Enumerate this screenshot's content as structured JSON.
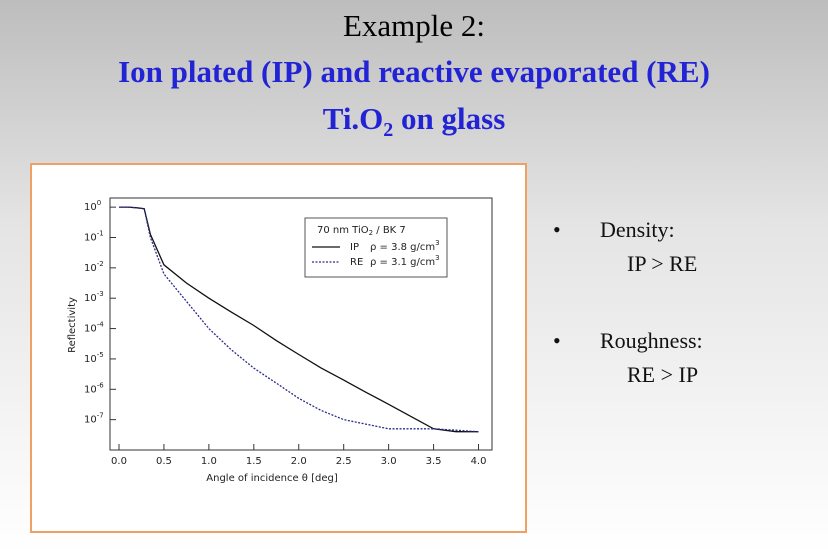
{
  "slide": {
    "title": "Example 2:",
    "subtitle": "Ion plated (IP) and reactive evaporated (RE)",
    "subtitle2": {
      "text": "Ti.O",
      "sub": "2",
      "rest": " on glass"
    }
  },
  "chart_data": {
    "type": "line",
    "log_y": true,
    "grid": false,
    "x_label": "Angle of incidence  θ [deg]",
    "y_label": "Reflectivity",
    "legend": {
      "title": "70 nm TiO",
      "title_sub": "2",
      "title_rest": " / BK 7",
      "entries": [
        {
          "density": "ρ = 3.8 g/cm",
          "unit_exp": "3"
        },
        {
          "density": "ρ = 3.1 g/cm",
          "unit_exp": "3"
        }
      ]
    },
    "x": [
      0,
      0.1,
      0.2,
      0.28,
      0.35,
      0.5,
      0.75,
      1,
      1.25,
      1.5,
      1.75,
      2,
      2.25,
      2.5,
      2.75,
      3,
      3.25,
      3.5,
      3.75,
      4
    ],
    "series": [
      {
        "name": "IP",
        "color": "#111111",
        "dash": false,
        "values": [
          1,
          1,
          0.95,
          0.89,
          0.126,
          0.0126,
          0.00316,
          0.001,
          0.00035,
          0.000126,
          4e-05,
          1.4e-05,
          5e-06,
          2e-06,
          7.9e-07,
          3.2e-07,
          1.26e-07,
          5e-08,
          4e-08,
          4e-08
        ]
      },
      {
        "name": "RE",
        "color": "#2b2b8c",
        "dash": true,
        "values": [
          1,
          1,
          0.95,
          0.89,
          0.1,
          0.0063,
          0.00079,
          0.0001,
          2e-05,
          5e-06,
          1.6e-06,
          5e-07,
          2e-07,
          1e-07,
          7.1e-08,
          5e-08,
          5e-08,
          5e-08,
          4.5e-08,
          4e-08
        ]
      }
    ],
    "xlim": [
      -0.1,
      4.15
    ],
    "xticks": [
      {
        "value": 0,
        "label": "0.0"
      },
      0.5,
      {
        "value": 1,
        "label": "1.0"
      },
      1.5,
      {
        "value": 2,
        "label": "2.0"
      },
      2.5,
      {
        "value": 3,
        "label": "3.0"
      },
      3.5,
      {
        "value": 4,
        "label": "4.0"
      }
    ],
    "ylim": [
      1e-08,
      2
    ],
    "yticks": [
      {
        "value": 1,
        "label": "10",
        "exponent": "0"
      },
      {
        "value": 0.1,
        "label": "10",
        "exponent": "-1"
      },
      {
        "value": 0.01,
        "label": "10",
        "exponent": "-2"
      },
      {
        "value": 0.001,
        "label": "10",
        "exponent": "-3"
      },
      {
        "value": 0.0001,
        "label": "10",
        "exponent": "-4"
      },
      {
        "value": 1e-05,
        "label": "10",
        "exponent": "-5"
      },
      {
        "value": 1e-06,
        "label": "10",
        "exponent": "-6"
      },
      {
        "value": 1e-07,
        "label": "10",
        "exponent": "-7"
      }
    ]
  },
  "bullets": [
    {
      "heading": "Density:",
      "detail": "IP > RE"
    },
    {
      "heading": "Roughness:",
      "detail": "RE > IP"
    }
  ]
}
